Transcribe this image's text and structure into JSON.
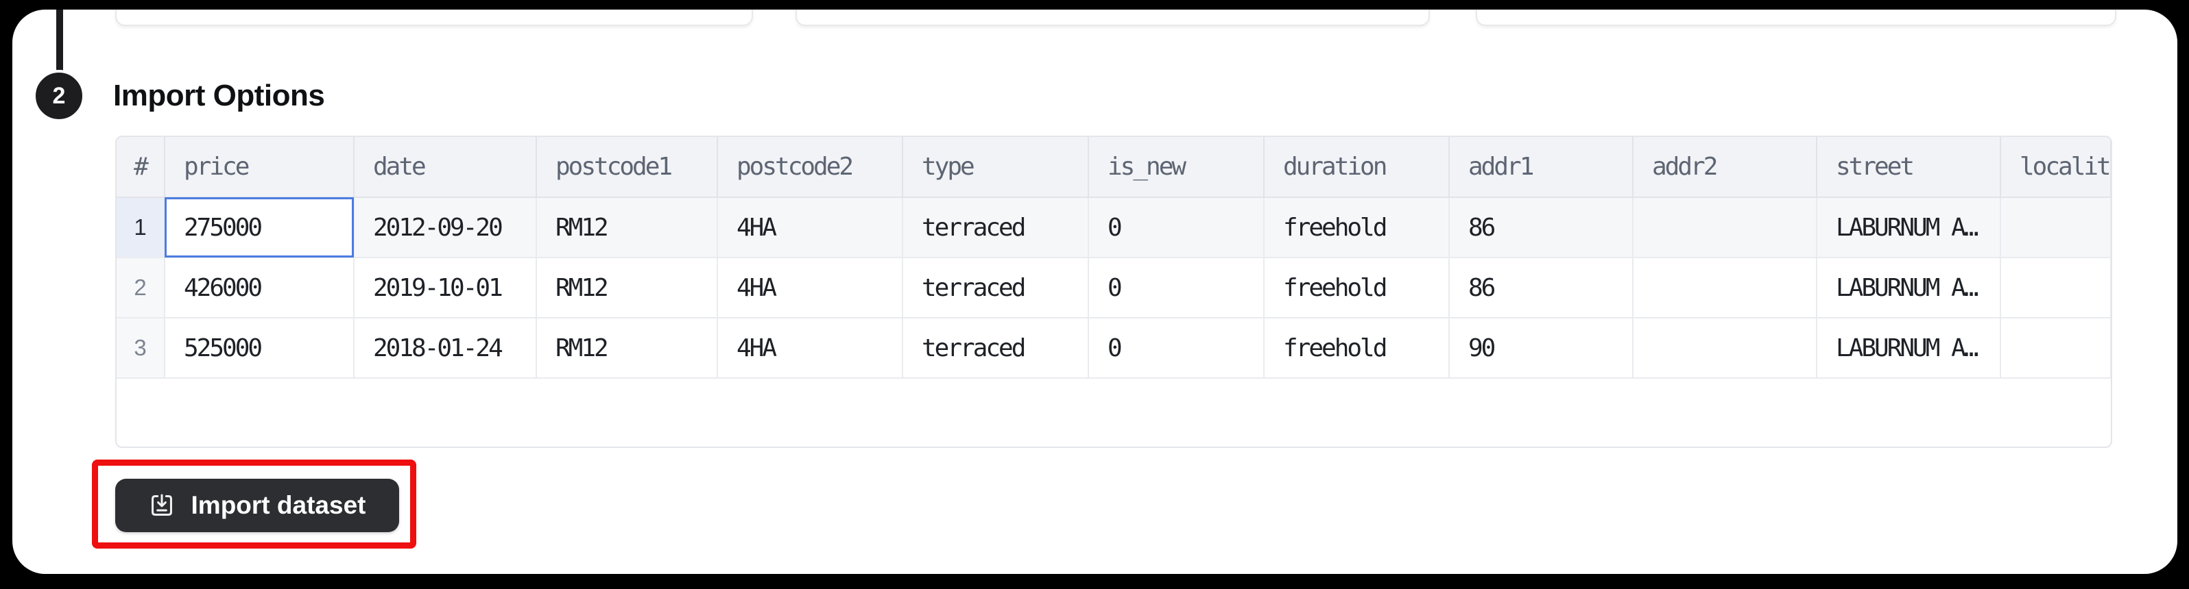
{
  "step": {
    "number": "2",
    "title": "Import Options"
  },
  "table": {
    "columns": [
      "#",
      "price",
      "date",
      "postcode1",
      "postcode2",
      "type",
      "is_new",
      "duration",
      "addr1",
      "addr2",
      "street",
      "locality"
    ],
    "rows": [
      {
        "num": "1",
        "cells": [
          "275000",
          "2012-09-20",
          "RM12",
          "4HA",
          "terraced",
          "0",
          "freehold",
          "86",
          "",
          "LABURNUM A…",
          ""
        ]
      },
      {
        "num": "2",
        "cells": [
          "426000",
          "2019-10-01",
          "RM12",
          "4HA",
          "terraced",
          "0",
          "freehold",
          "86",
          "",
          "LABURNUM A…",
          ""
        ]
      },
      {
        "num": "3",
        "cells": [
          "525000",
          "2018-01-24",
          "RM12",
          "4HA",
          "terraced",
          "0",
          "freehold",
          "90",
          "",
          "LABURNUM A…",
          ""
        ]
      }
    ],
    "selected_cell": {
      "row": 1,
      "column": "price",
      "value": "275000"
    }
  },
  "import_button": {
    "label": "Import dataset",
    "icon": "download-tray-icon"
  },
  "colors": {
    "accent_blue_selected_cell": "#4b7ce2",
    "highlight_red": "#ee0f0f",
    "button_background": "#2d2e32",
    "step_badge_background": "#1d1d20"
  }
}
